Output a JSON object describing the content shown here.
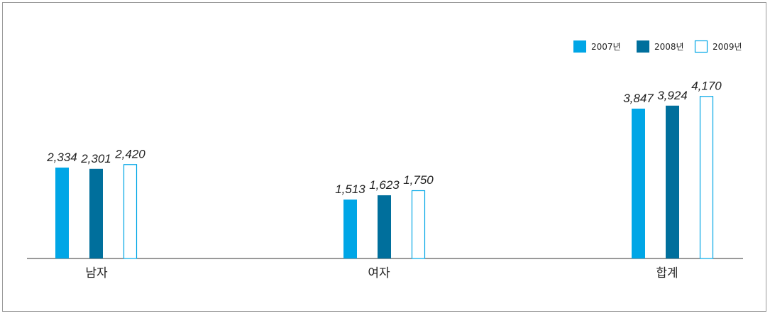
{
  "chart_data": {
    "type": "bar",
    "categories": [
      "남자",
      "여자",
      "합계"
    ],
    "series": [
      {
        "name": "2007년",
        "values": [
          2334,
          1513,
          3847
        ],
        "color": "#00a6e6",
        "fill": "solid"
      },
      {
        "name": "2008년",
        "values": [
          2301,
          1623,
          3924
        ],
        "color": "#006f9c",
        "fill": "solid"
      },
      {
        "name": "2009년",
        "values": [
          2420,
          1750,
          4170
        ],
        "color": "#00a6e6",
        "fill": "outline"
      }
    ],
    "value_labels": [
      [
        "2,334",
        "2,301",
        "2,420"
      ],
      [
        "1,513",
        "1,623",
        "1,750"
      ],
      [
        "3,847",
        "3,924",
        "4,170"
      ]
    ],
    "ylim": [
      0,
      5000
    ],
    "grid": false,
    "legend_position": "top-right"
  }
}
